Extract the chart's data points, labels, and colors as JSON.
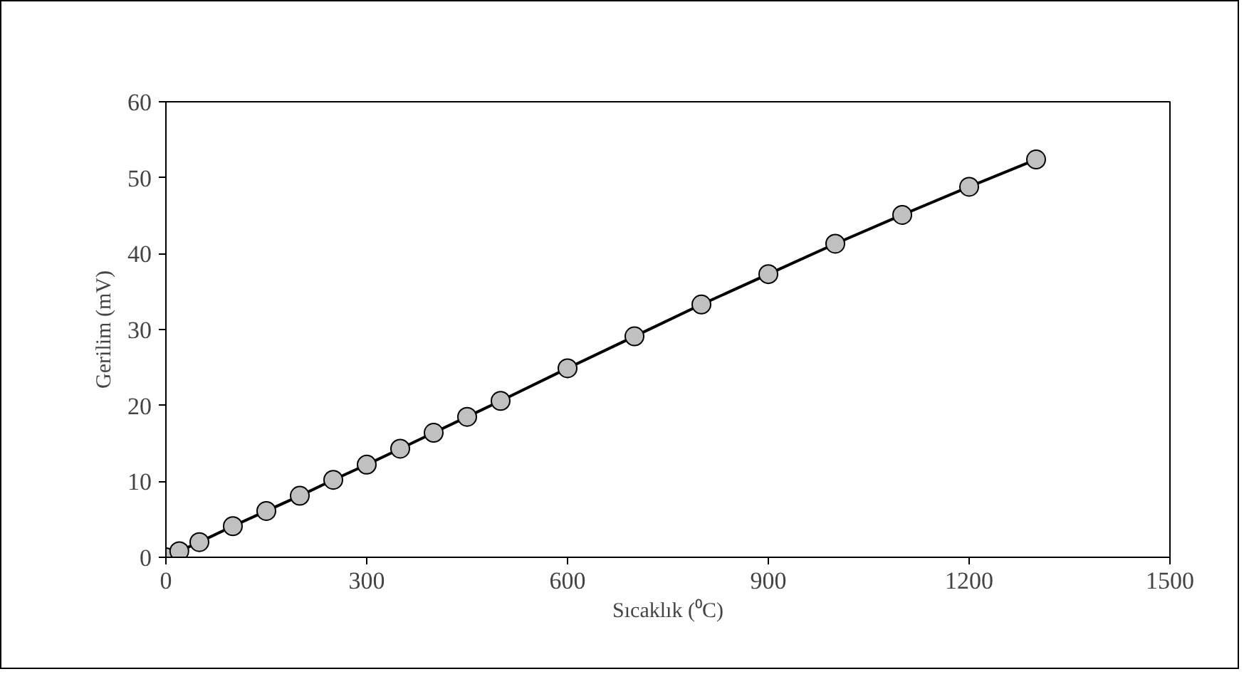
{
  "chart_data": {
    "type": "line",
    "xlabel": "Sıcaklık (⁰C)",
    "ylabel": "Gerilim (mV)",
    "x": [
      0,
      20,
      50,
      100,
      150,
      200,
      250,
      300,
      350,
      400,
      450,
      500,
      600,
      700,
      800,
      900,
      1000,
      1100,
      1200,
      1300
    ],
    "series": [
      {
        "color": "#000000",
        "values": [
          0,
          0.8,
          2.0,
          4.1,
          6.1,
          8.1,
          10.2,
          12.2,
          14.3,
          16.4,
          18.5,
          20.6,
          24.9,
          29.1,
          33.3,
          37.3,
          41.3,
          45.1,
          48.8,
          52.4
        ]
      }
    ],
    "marker": "circle",
    "line_style": "solid",
    "xlim": [
      0,
      1500
    ],
    "xticks": [
      0,
      300,
      600,
      900,
      1200,
      1500
    ],
    "ylim": [
      0,
      60
    ],
    "yticks": [
      0,
      10,
      20,
      30,
      40,
      50,
      60
    ],
    "grid": false
  }
}
